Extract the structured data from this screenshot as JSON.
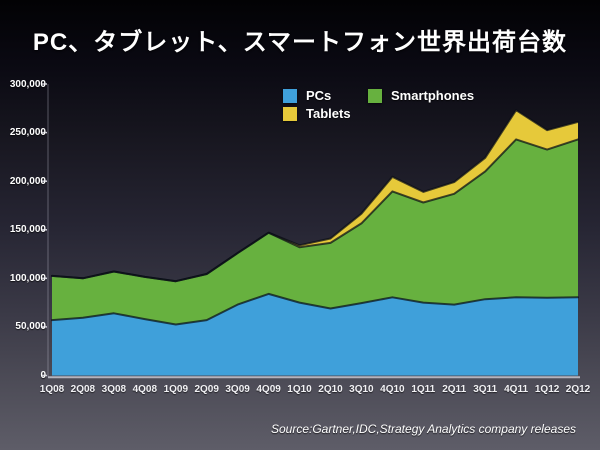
{
  "title": "PC、タブレット、スマートフォン世界出荷台数",
  "source": "Source:Gartner,IDC,Strategy Analytics company releases",
  "legend": [
    {
      "label": "PCs",
      "color": "#3fa0da"
    },
    {
      "label": "Tablets",
      "color": "#e6c93a"
    },
    {
      "label": "Smartphones",
      "color": "#67b13f"
    }
  ],
  "chart_data": {
    "type": "area",
    "stacked": true,
    "title": "PC、タブレット、スマートフォン世界出荷台数",
    "xlabel": "",
    "ylabel": "",
    "ylim": [
      0,
      300000
    ],
    "yticks": [
      0,
      50000,
      100000,
      150000,
      200000,
      250000,
      300000
    ],
    "ytick_labels": [
      "0",
      "50,000",
      "100,000",
      "150,000",
      "200,000",
      "250,000",
      "300,000"
    ],
    "grid": false,
    "legend_position": "top-center",
    "categories": [
      "1Q08",
      "2Q08",
      "3Q08",
      "4Q08",
      "1Q09",
      "2Q09",
      "3Q09",
      "4Q09",
      "1Q10",
      "2Q10",
      "3Q10",
      "4Q10",
      "1Q11",
      "2Q11",
      "3Q11",
      "4Q11",
      "1Q12",
      "2Q12"
    ],
    "series": [
      {
        "name": "PCs",
        "color": "#3fa0da",
        "values": [
          57000,
          59500,
          64000,
          58000,
          52500,
          57000,
          73000,
          84000,
          75000,
          69000,
          74500,
          80500,
          75000,
          73000,
          78500,
          80500,
          80000,
          80500
        ]
      },
      {
        "name": "Smartphones",
        "color": "#67b13f",
        "values": [
          45500,
          40500,
          43000,
          43500,
          44500,
          47500,
          53000,
          63000,
          57000,
          67500,
          82000,
          109000,
          103000,
          114000,
          131500,
          162500,
          152500,
          162500
        ]
      },
      {
        "name": "Tablets",
        "color": "#e6c93a",
        "values": [
          0,
          0,
          0,
          0,
          0,
          0,
          0,
          0,
          2000,
          4500,
          10000,
          15000,
          11000,
          12000,
          14000,
          30000,
          20000,
          18000
        ]
      }
    ]
  }
}
